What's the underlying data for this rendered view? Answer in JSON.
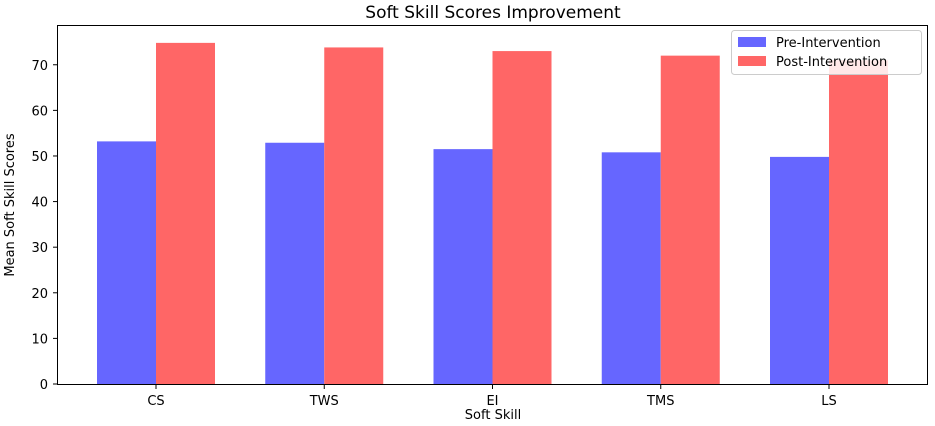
{
  "chart_data": {
    "type": "bar",
    "title": "Soft Skill Scores Improvement",
    "xlabel": "Soft Skill",
    "ylabel": "Mean Soft Skill Scores",
    "categories": [
      "CS",
      "TWS",
      "EI",
      "TMS",
      "LS"
    ],
    "series": [
      {
        "name": "Pre-Intervention",
        "values": [
          53.2,
          52.9,
          51.5,
          50.8,
          49.8
        ],
        "color": "#6666ff"
      },
      {
        "name": "Post-Intervention",
        "values": [
          74.8,
          73.8,
          73.0,
          72.0,
          71.0
        ],
        "color": "#ff6666"
      }
    ],
    "ylim": [
      0,
      78.5
    ],
    "yticks": [
      0,
      10,
      20,
      30,
      40,
      50,
      60,
      70
    ],
    "grid": false,
    "legend_position": "top-right"
  }
}
